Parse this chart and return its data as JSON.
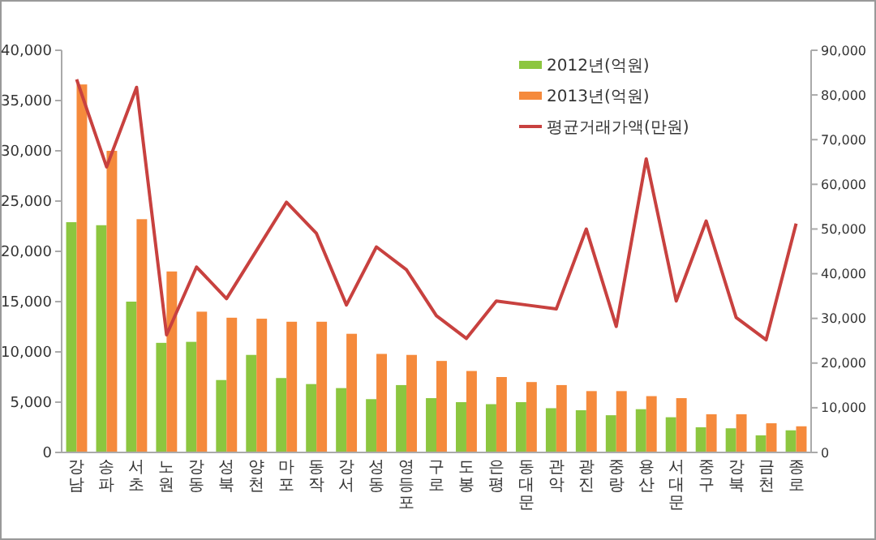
{
  "chart_data": {
    "type": "bar",
    "categories": [
      "강남",
      "송파",
      "서초",
      "노원",
      "강동",
      "성북",
      "양천",
      "마포",
      "동작",
      "강서",
      "성동",
      "영등포",
      "구로",
      "도봉",
      "은평",
      "동대문",
      "관악",
      "광진",
      "중랑",
      "용산",
      "서대문",
      "중구",
      "강북",
      "금천",
      "종로"
    ],
    "series": [
      {
        "name": "2012년(억원)",
        "color": "#8cc63f",
        "values": [
          22900,
          22600,
          15000,
          10900,
          11000,
          7200,
          9700,
          7400,
          6800,
          6400,
          5300,
          6700,
          5400,
          5000,
          4800,
          5000,
          4400,
          4200,
          3700,
          4300,
          3500,
          2500,
          2400,
          1700,
          2200
        ]
      },
      {
        "name": "2013년(억원)",
        "color": "#f58a3c",
        "values": [
          36600,
          30000,
          23200,
          18000,
          14000,
          13400,
          13300,
          13000,
          13000,
          11800,
          9800,
          9700,
          9100,
          8100,
          7500,
          7000,
          6700,
          6100,
          6100,
          5600,
          5400,
          3800,
          3800,
          2900,
          2600
        ]
      },
      {
        "name": "평균거래가액(만원)",
        "type": "line",
        "axis": "y2",
        "color": "#c8413f",
        "values": [
          83500,
          63900,
          81700,
          26300,
          41500,
          34400,
          45200,
          56000,
          49000,
          33000,
          46000,
          40900,
          30600,
          25500,
          33900,
          33000,
          32100,
          50000,
          28200,
          65700,
          33900,
          51800,
          30200,
          25200,
          51200
        ]
      }
    ],
    "ylim": [
      0,
      40000
    ],
    "yticks": [
      {
        "value": 0,
        "label": "0"
      },
      {
        "value": 5000,
        "label": "5,000"
      },
      {
        "value": 10000,
        "label": "10,000"
      },
      {
        "value": 15000,
        "label": "15,000"
      },
      {
        "value": 20000,
        "label": "20,000"
      },
      {
        "value": 25000,
        "label": "25,000"
      },
      {
        "value": 30000,
        "label": "30,000"
      },
      {
        "value": 35000,
        "label": "35,000"
      },
      {
        "value": 40000,
        "label": "40,000"
      }
    ],
    "y2lim": [
      0,
      90000
    ],
    "y2ticks": [
      {
        "value": 0,
        "label": "0"
      },
      {
        "value": 10000,
        "label": "10,000"
      },
      {
        "value": 20000,
        "label": "20,000"
      },
      {
        "value": 30000,
        "label": "30,000"
      },
      {
        "value": 40000,
        "label": "40,000"
      },
      {
        "value": 50000,
        "label": "50,000"
      },
      {
        "value": 60000,
        "label": "60,000"
      },
      {
        "value": 70000,
        "label": "70,000"
      },
      {
        "value": 80000,
        "label": "80,000"
      },
      {
        "value": 90000,
        "label": "90,000"
      }
    ],
    "legend": "top right",
    "grid": false
  }
}
